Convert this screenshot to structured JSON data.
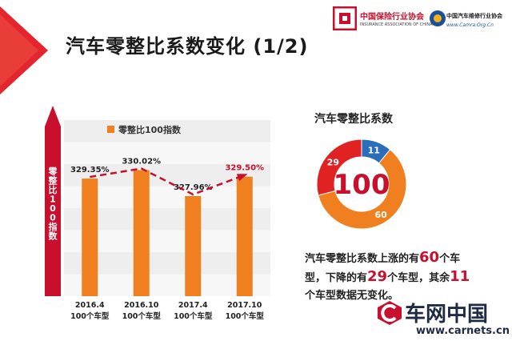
{
  "page": {
    "title": "汽车零整比系数变化 (1/2)"
  },
  "logos": {
    "insurance_name": "中国保险行业协会",
    "insurance_en": "INSURANCE ASSOCIATION OF CHINA",
    "auto_name": "中国汽车维修行业协会",
    "auto_url": "www.Camra.Org.Cn"
  },
  "watermark": {
    "name": "车网中国",
    "url": "www.carnets.cn"
  },
  "colors": {
    "accent_red": "#c8102e",
    "bar_orange": "#f0801f",
    "pie_blue": "#2a6ebb",
    "pie_red": "#e02222",
    "pie_orange": "#f0801f"
  },
  "chart_data": [
    {
      "type": "bar",
      "legend": [
        "零整比100指数"
      ],
      "ylabel": "零整比100指数",
      "categories": [
        [
          "2016.4",
          "100个车型"
        ],
        [
          "2016.10",
          "100个车型"
        ],
        [
          "2017.4",
          "100个车型"
        ],
        [
          "2017.10",
          "100个车型"
        ]
      ],
      "values": [
        329.35,
        330.02,
        327.96,
        329.5
      ],
      "value_labels": [
        "329.35%",
        "330.02%",
        "327.96%",
        "329.50%"
      ],
      "ylim": [
        320,
        334
      ],
      "trend_line": "dashed red arrow through values",
      "grid": false
    },
    {
      "type": "pie",
      "title": "汽车零整比系数",
      "center_label": "100",
      "slices": [
        {
          "value": 11,
          "color": "#2a6ebb"
        },
        {
          "value": 60,
          "color": "#f0801f"
        },
        {
          "value": 29,
          "color": "#e02222"
        }
      ]
    }
  ],
  "summary": {
    "p1": "汽车零整比系数上涨的有",
    "n1": "60",
    "p2": "个车型，下降的有",
    "n2": "29",
    "p3": "个车型，其余",
    "n3": "11",
    "p4": "个车型数据无变化。"
  }
}
